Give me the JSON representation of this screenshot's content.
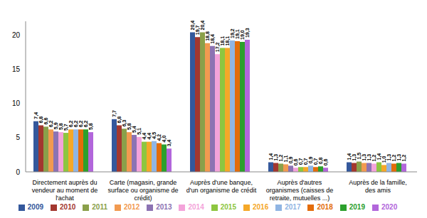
{
  "chart_data": {
    "type": "bar",
    "categories": [
      "Directement auprès du vendeur au moment de l'achat",
      "Carte (magasin, grande surface ou organisme de crédit)",
      "Auprès d'une banque, d'un organisme de crédit",
      "Auprès d'autres organismes (caisses de retraite, mutuelles ...)",
      "Auprès de la famille, des amis"
    ],
    "series": [
      {
        "name": "2009",
        "color": "#34589C",
        "values": [
          7.4,
          7.7,
          20.4,
          1.4,
          1.4
        ],
        "value_labels": [
          "7,4",
          "7,7",
          "20,4",
          "1,4",
          "1,4"
        ]
      },
      {
        "name": "2010",
        "color": "#A3372F",
        "values": [
          6.8,
          6.8,
          19.7,
          1.3,
          1.3
        ],
        "value_labels": [
          "6,8",
          "6,8",
          "19,7",
          "1,3",
          "1,3"
        ]
      },
      {
        "name": "2011",
        "color": "#8AA04A",
        "values": [
          6.6,
          6.3,
          20.4,
          1.2,
          1.5
        ],
        "value_labels": [
          "6,6",
          "6,3",
          "20,4",
          "1,2",
          "1,5"
        ]
      },
      {
        "name": "2012",
        "color": "#F29A50",
        "values": [
          6.2,
          5.8,
          18.8,
          1.1,
          1.3
        ],
        "value_labels": [
          "6,2",
          "5,8",
          "18,8",
          "1,1",
          "1,3"
        ]
      },
      {
        "name": "2013",
        "color": "#8C73B3",
        "values": [
          5.9,
          5.4,
          18.4,
          0.9,
          1.3
        ],
        "value_labels": [
          "5,9",
          "5,4",
          "18,4",
          "0,9",
          "1,3"
        ]
      },
      {
        "name": "2014",
        "color": "#F4A3DA",
        "values": [
          5.8,
          5.1,
          17.2,
          0.6,
          1.2
        ],
        "value_labels": [
          "5,8",
          "5,1",
          "17,2",
          "0,6",
          "1,2"
        ]
      },
      {
        "name": "2015",
        "color": "#8DC640",
        "values": [
          5.7,
          4.4,
          18.1,
          0.7,
          1.4
        ],
        "value_labels": [
          "5,7",
          "4,4",
          "18,1",
          "0,7",
          "1,4"
        ]
      },
      {
        "name": "2016",
        "color": "#F5A828",
        "values": [
          6.2,
          4.4,
          18.1,
          0.7,
          1.0
        ],
        "value_labels": [
          "6,2",
          "4,4",
          "18,1",
          "0,7",
          "1,0"
        ]
      },
      {
        "name": "2017",
        "color": "#90B5E3",
        "values": [
          6.2,
          4.5,
          19.2,
          0.9,
          1.3
        ],
        "value_labels": [
          "6,2",
          "4,5",
          "19,2",
          "0,9",
          "1,3"
        ]
      },
      {
        "name": "2018",
        "color": "#E36C0A",
        "values": [
          6.2,
          4.2,
          19.1,
          0.7,
          1.2
        ],
        "value_labels": [
          "6,2",
          "4,2",
          "19,1",
          "0,7",
          "1,2"
        ]
      },
      {
        "name": "2019",
        "color": "#2CA02C",
        "values": [
          6.2,
          4.0,
          19.0,
          0.8,
          1.3
        ],
        "value_labels": [
          "6,2",
          "4,0",
          "19,0",
          "0,8",
          "1,3"
        ]
      },
      {
        "name": "2020",
        "color": "#B266DB",
        "values": [
          5.8,
          3.4,
          19.3,
          0.6,
          1.2
        ],
        "value_labels": [
          "5,8",
          "3,4",
          "19,3",
          "0,6",
          "1,2"
        ]
      }
    ],
    "ylim": [
      0,
      22
    ],
    "yticks": [
      0,
      5,
      10,
      15,
      20
    ],
    "grid": false,
    "legend": "bottom",
    "data_labels": true
  }
}
